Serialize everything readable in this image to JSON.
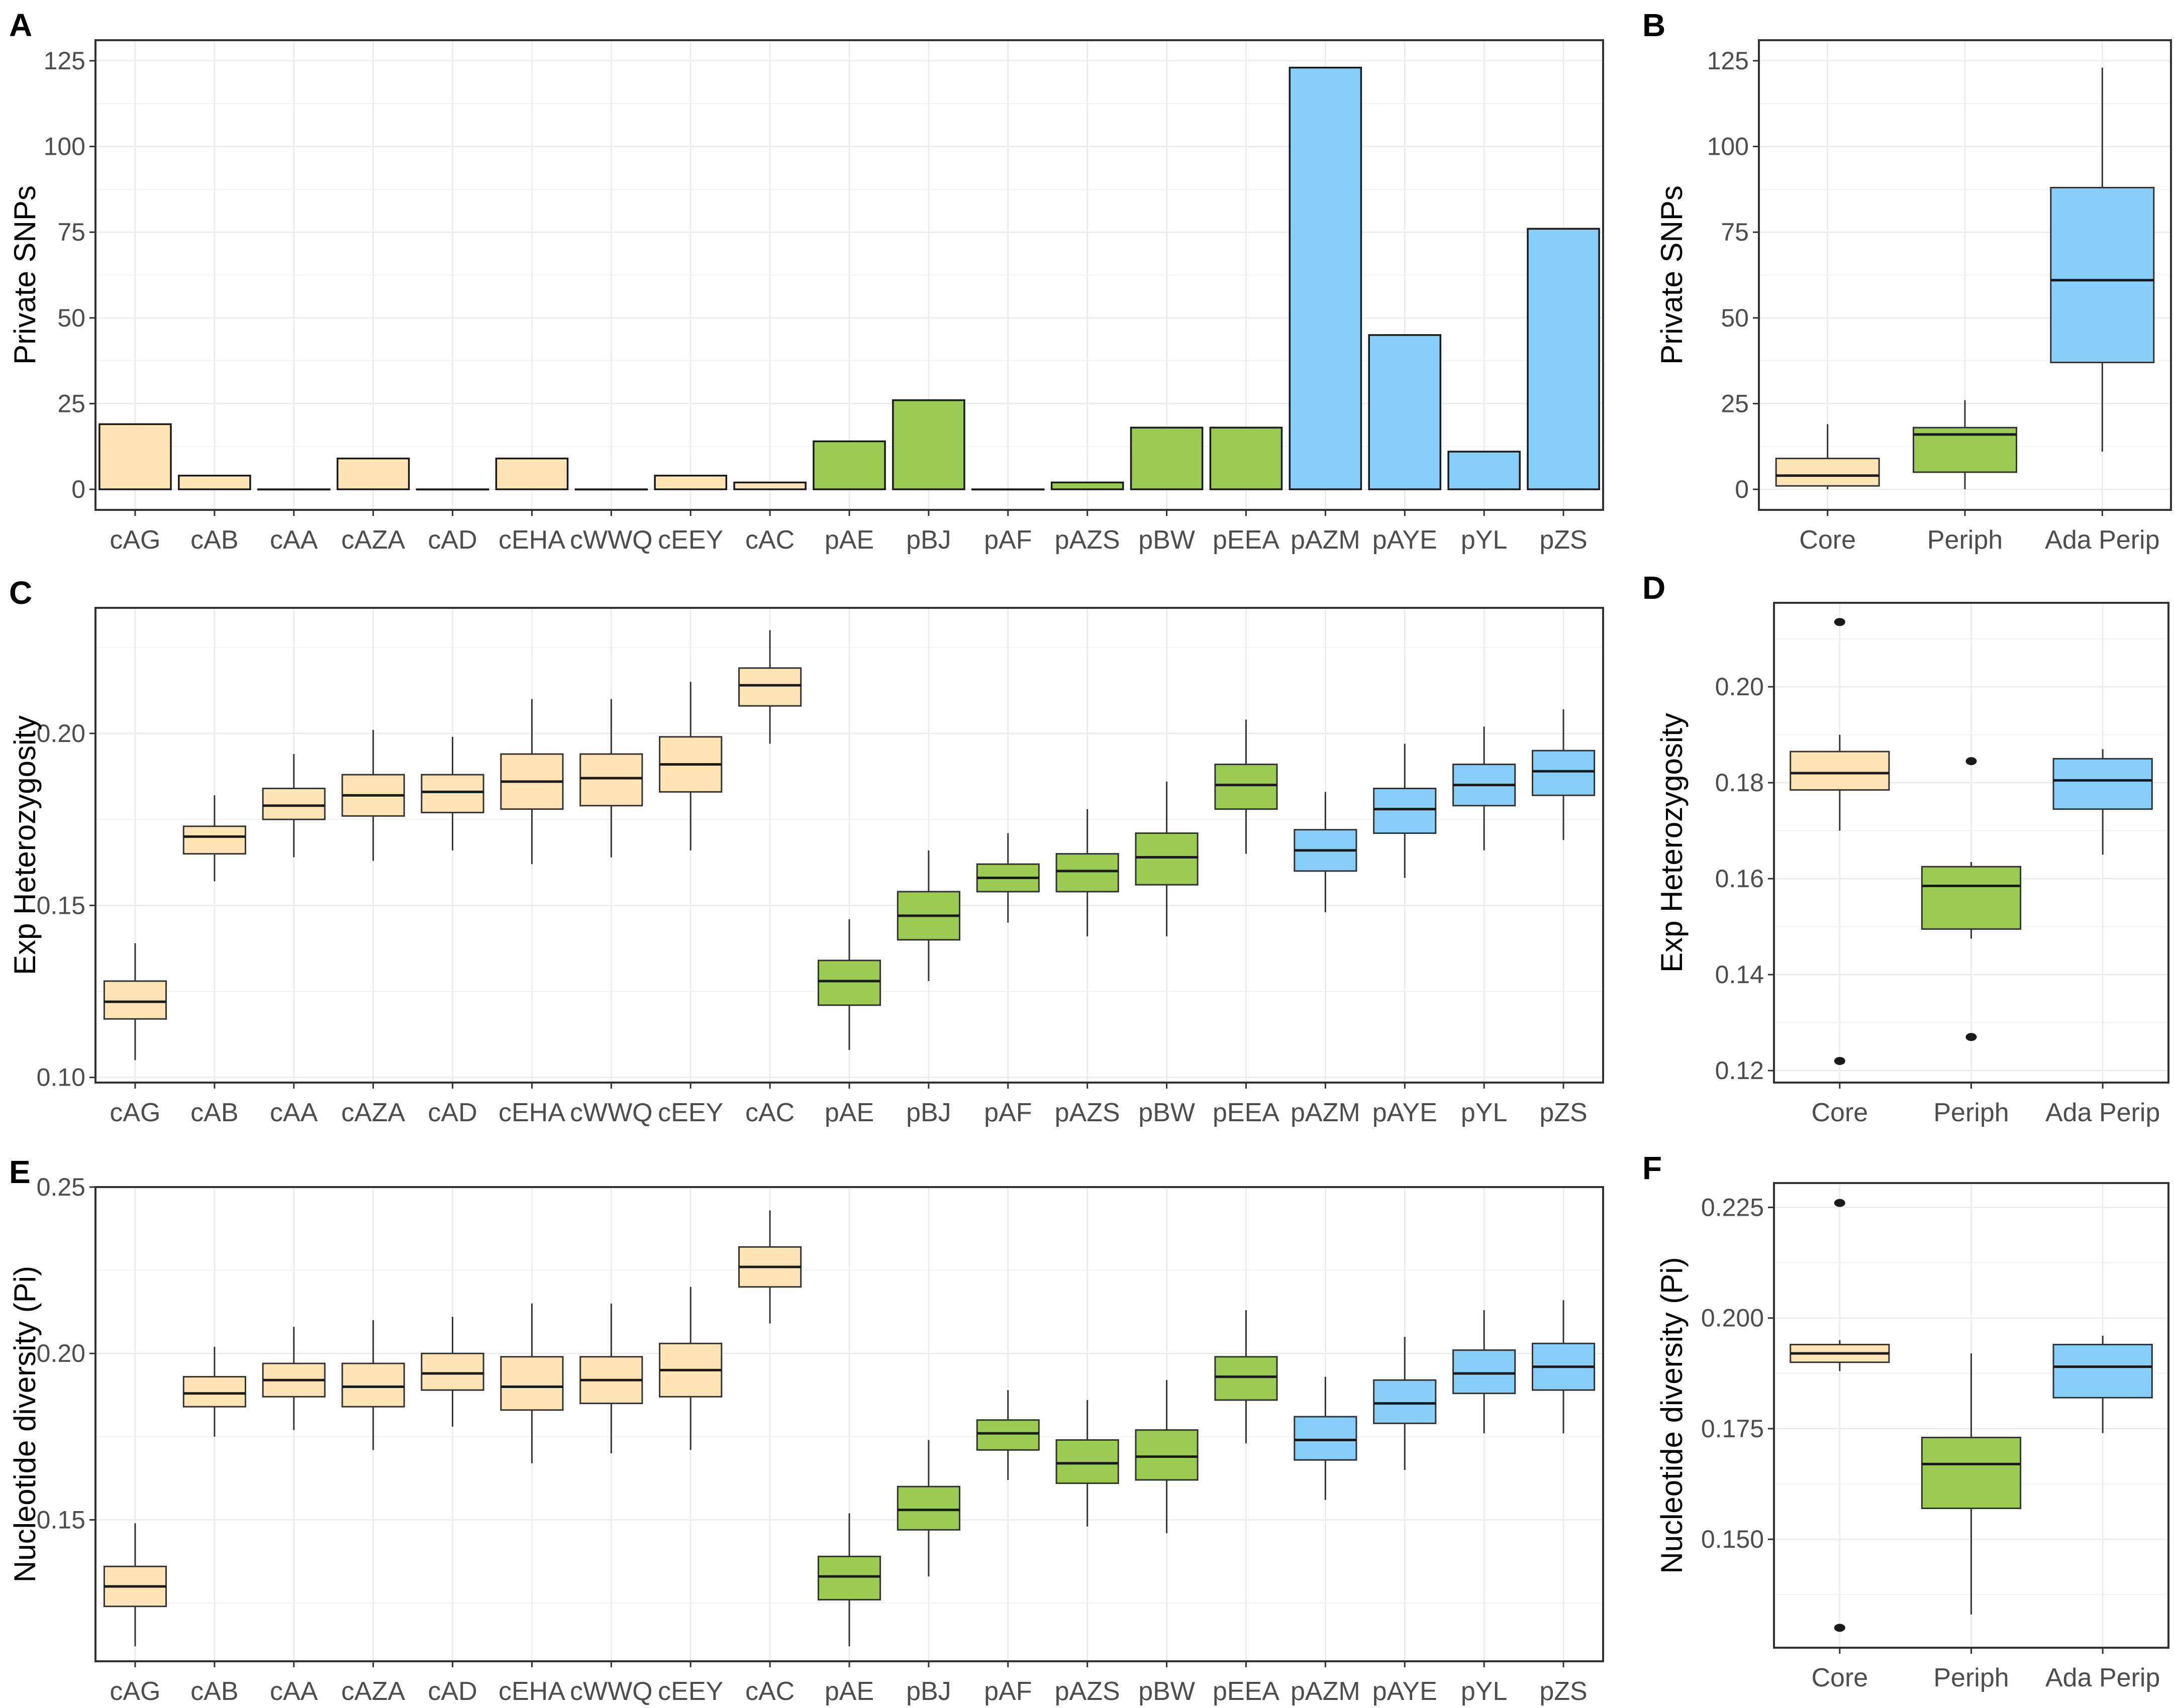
{
  "colors": {
    "core": "#FFE4B5",
    "periph": "#9BCB53",
    "ada": "#87CEFA"
  },
  "chart_data": [
    {
      "panel": "A",
      "type": "bar",
      "ylabel": "Private SNPs",
      "ylim": [
        -6,
        131
      ],
      "yticks": [
        0,
        25,
        50,
        75,
        100,
        125
      ],
      "categories": [
        "cAG",
        "cAB",
        "cAA",
        "cAZA",
        "cAD",
        "cEHA",
        "cWWQ",
        "cEEY",
        "cAC",
        "pAE",
        "pBJ",
        "pAF",
        "pAZS",
        "pBW",
        "pEEA",
        "pAZM",
        "pAYE",
        "pYL",
        "pZS"
      ],
      "groups": [
        "core",
        "core",
        "core",
        "core",
        "core",
        "core",
        "core",
        "core",
        "core",
        "periph",
        "periph",
        "periph",
        "periph",
        "periph",
        "periph",
        "ada",
        "ada",
        "ada",
        "ada"
      ],
      "values": [
        19,
        4,
        0,
        9,
        0,
        9,
        0,
        4,
        2,
        14,
        26,
        0,
        2,
        18,
        18,
        123,
        45,
        11,
        76
      ]
    },
    {
      "panel": "B",
      "type": "box",
      "ylabel": "Private SNPs",
      "ylim": [
        -6,
        131
      ],
      "yticks": [
        0,
        25,
        50,
        75,
        100,
        125
      ],
      "categories": [
        "Core",
        "Periph",
        "Ada Perip"
      ],
      "groups": [
        "core",
        "periph",
        "ada"
      ],
      "boxes": [
        {
          "low": 0,
          "q1": 1,
          "median": 4,
          "q3": 9,
          "high": 19,
          "outliers": []
        },
        {
          "low": 0,
          "q1": 5,
          "median": 16,
          "q3": 18,
          "high": 26,
          "outliers": []
        },
        {
          "low": 11,
          "q1": 37,
          "median": 61,
          "q3": 88,
          "high": 123,
          "outliers": []
        }
      ]
    },
    {
      "panel": "C",
      "type": "box",
      "ylabel": "Exp Heterozygosity",
      "ylim": [
        0.0985,
        0.2365
      ],
      "yticks": [
        0.1,
        0.15,
        0.2
      ],
      "ytick_labels": [
        "0.10",
        "0.15",
        "0.20"
      ],
      "categories": [
        "cAG",
        "cAB",
        "cAA",
        "cAZA",
        "cAD",
        "cEHA",
        "cWWQ",
        "cEEY",
        "cAC",
        "pAE",
        "pBJ",
        "pAF",
        "pAZS",
        "pBW",
        "pEEA",
        "pAZM",
        "pAYE",
        "pYL",
        "pZS"
      ],
      "groups": [
        "core",
        "core",
        "core",
        "core",
        "core",
        "core",
        "core",
        "core",
        "core",
        "periph",
        "periph",
        "periph",
        "periph",
        "periph",
        "periph",
        "ada",
        "ada",
        "ada",
        "ada"
      ],
      "boxes": [
        {
          "low": 0.105,
          "q1": 0.117,
          "median": 0.122,
          "q3": 0.128,
          "high": 0.139,
          "outliers": []
        },
        {
          "low": 0.157,
          "q1": 0.165,
          "median": 0.17,
          "q3": 0.173,
          "high": 0.182,
          "outliers": []
        },
        {
          "low": 0.164,
          "q1": 0.175,
          "median": 0.179,
          "q3": 0.184,
          "high": 0.194,
          "outliers": []
        },
        {
          "low": 0.163,
          "q1": 0.176,
          "median": 0.182,
          "q3": 0.188,
          "high": 0.201,
          "outliers": []
        },
        {
          "low": 0.166,
          "q1": 0.177,
          "median": 0.183,
          "q3": 0.188,
          "high": 0.199,
          "outliers": []
        },
        {
          "low": 0.162,
          "q1": 0.178,
          "median": 0.186,
          "q3": 0.194,
          "high": 0.21,
          "outliers": []
        },
        {
          "low": 0.164,
          "q1": 0.179,
          "median": 0.187,
          "q3": 0.194,
          "high": 0.21,
          "outliers": []
        },
        {
          "low": 0.166,
          "q1": 0.183,
          "median": 0.191,
          "q3": 0.199,
          "high": 0.215,
          "outliers": []
        },
        {
          "low": 0.197,
          "q1": 0.208,
          "median": 0.214,
          "q3": 0.219,
          "high": 0.23,
          "outliers": []
        },
        {
          "low": 0.108,
          "q1": 0.121,
          "median": 0.128,
          "q3": 0.134,
          "high": 0.146,
          "outliers": []
        },
        {
          "low": 0.128,
          "q1": 0.14,
          "median": 0.147,
          "q3": 0.154,
          "high": 0.166,
          "outliers": []
        },
        {
          "low": 0.145,
          "q1": 0.154,
          "median": 0.158,
          "q3": 0.162,
          "high": 0.171,
          "outliers": []
        },
        {
          "low": 0.141,
          "q1": 0.154,
          "median": 0.16,
          "q3": 0.165,
          "high": 0.178,
          "outliers": []
        },
        {
          "low": 0.141,
          "q1": 0.156,
          "median": 0.164,
          "q3": 0.171,
          "high": 0.186,
          "outliers": []
        },
        {
          "low": 0.165,
          "q1": 0.178,
          "median": 0.185,
          "q3": 0.191,
          "high": 0.204,
          "outliers": []
        },
        {
          "low": 0.148,
          "q1": 0.16,
          "median": 0.166,
          "q3": 0.172,
          "high": 0.183,
          "outliers": []
        },
        {
          "low": 0.158,
          "q1": 0.171,
          "median": 0.178,
          "q3": 0.184,
          "high": 0.197,
          "outliers": []
        },
        {
          "low": 0.166,
          "q1": 0.179,
          "median": 0.185,
          "q3": 0.191,
          "high": 0.202,
          "outliers": []
        },
        {
          "low": 0.169,
          "q1": 0.182,
          "median": 0.189,
          "q3": 0.195,
          "high": 0.207,
          "outliers": []
        }
      ]
    },
    {
      "panel": "D",
      "type": "box",
      "ylabel": "Exp Heterozygosity",
      "ylim": [
        0.1175,
        0.2175
      ],
      "yticks": [
        0.12,
        0.14,
        0.16,
        0.18,
        0.2
      ],
      "ytick_labels": [
        "0.12",
        "0.14",
        "0.16",
        "0.18",
        "0.20"
      ],
      "categories": [
        "Core",
        "Periph",
        "Ada Perip"
      ],
      "groups": [
        "core",
        "periph",
        "ada"
      ],
      "boxes": [
        {
          "low": 0.17,
          "q1": 0.1785,
          "median": 0.182,
          "q3": 0.1865,
          "high": 0.19,
          "outliers": [
            0.2135,
            0.122
          ]
        },
        {
          "low": 0.1475,
          "q1": 0.1495,
          "median": 0.1585,
          "q3": 0.1625,
          "high": 0.1635,
          "outliers": [
            0.1845,
            0.127
          ]
        },
        {
          "low": 0.165,
          "q1": 0.1745,
          "median": 0.1805,
          "q3": 0.185,
          "high": 0.187,
          "outliers": []
        }
      ]
    },
    {
      "panel": "E",
      "type": "box",
      "ylabel": "Nucleotide diversity (Pi)",
      "ylim": [
        0.1075,
        0.25
      ],
      "yticks": [
        0.15,
        0.2,
        0.25
      ],
      "ytick_labels": [
        "0.15",
        "0.20",
        "0.25"
      ],
      "categories": [
        "cAG",
        "cAB",
        "cAA",
        "cAZA",
        "cAD",
        "cEHA",
        "cWWQ",
        "cEEY",
        "cAC",
        "pAE",
        "pBJ",
        "pAF",
        "pAZS",
        "pBW",
        "pEEA",
        "pAZM",
        "pAYE",
        "pYL",
        "pZS"
      ],
      "groups": [
        "core",
        "core",
        "core",
        "core",
        "core",
        "core",
        "core",
        "core",
        "core",
        "periph",
        "periph",
        "periph",
        "periph",
        "periph",
        "periph",
        "ada",
        "ada",
        "ada",
        "ada"
      ],
      "boxes": [
        {
          "low": 0.112,
          "q1": 0.124,
          "median": 0.13,
          "q3": 0.136,
          "high": 0.149,
          "outliers": []
        },
        {
          "low": 0.175,
          "q1": 0.184,
          "median": 0.188,
          "q3": 0.193,
          "high": 0.202,
          "outliers": []
        },
        {
          "low": 0.177,
          "q1": 0.187,
          "median": 0.192,
          "q3": 0.197,
          "high": 0.208,
          "outliers": []
        },
        {
          "low": 0.171,
          "q1": 0.184,
          "median": 0.19,
          "q3": 0.197,
          "high": 0.21,
          "outliers": []
        },
        {
          "low": 0.178,
          "q1": 0.189,
          "median": 0.194,
          "q3": 0.2,
          "high": 0.211,
          "outliers": []
        },
        {
          "low": 0.167,
          "q1": 0.183,
          "median": 0.19,
          "q3": 0.199,
          "high": 0.215,
          "outliers": []
        },
        {
          "low": 0.17,
          "q1": 0.185,
          "median": 0.192,
          "q3": 0.199,
          "high": 0.215,
          "outliers": []
        },
        {
          "low": 0.171,
          "q1": 0.187,
          "median": 0.195,
          "q3": 0.203,
          "high": 0.22,
          "outliers": []
        },
        {
          "low": 0.209,
          "q1": 0.22,
          "median": 0.226,
          "q3": 0.232,
          "high": 0.243,
          "outliers": []
        },
        {
          "low": 0.112,
          "q1": 0.126,
          "median": 0.133,
          "q3": 0.139,
          "high": 0.152,
          "outliers": []
        },
        {
          "low": 0.133,
          "q1": 0.147,
          "median": 0.153,
          "q3": 0.16,
          "high": 0.174,
          "outliers": []
        },
        {
          "low": 0.162,
          "q1": 0.171,
          "median": 0.176,
          "q3": 0.18,
          "high": 0.189,
          "outliers": []
        },
        {
          "low": 0.148,
          "q1": 0.161,
          "median": 0.167,
          "q3": 0.174,
          "high": 0.186,
          "outliers": []
        },
        {
          "low": 0.146,
          "q1": 0.162,
          "median": 0.169,
          "q3": 0.177,
          "high": 0.192,
          "outliers": []
        },
        {
          "low": 0.173,
          "q1": 0.186,
          "median": 0.193,
          "q3": 0.199,
          "high": 0.213,
          "outliers": []
        },
        {
          "low": 0.156,
          "q1": 0.168,
          "median": 0.174,
          "q3": 0.181,
          "high": 0.193,
          "outliers": []
        },
        {
          "low": 0.165,
          "q1": 0.179,
          "median": 0.185,
          "q3": 0.192,
          "high": 0.205,
          "outliers": []
        },
        {
          "low": 0.176,
          "q1": 0.188,
          "median": 0.194,
          "q3": 0.201,
          "high": 0.213,
          "outliers": []
        },
        {
          "low": 0.176,
          "q1": 0.189,
          "median": 0.196,
          "q3": 0.203,
          "high": 0.216,
          "outliers": []
        }
      ]
    },
    {
      "panel": "F",
      "type": "box",
      "ylabel": "Nucleotide diversity (Pi)",
      "ylim": [
        0.1255,
        0.2305
      ],
      "yticks": [
        0.15,
        0.175,
        0.2,
        0.225
      ],
      "ytick_labels": [
        "0.150",
        "0.175",
        "0.200",
        "0.225"
      ],
      "categories": [
        "Core",
        "Periph",
        "Ada Perip"
      ],
      "groups": [
        "core",
        "periph",
        "ada"
      ],
      "boxes": [
        {
          "low": 0.188,
          "q1": 0.19,
          "median": 0.192,
          "q3": 0.194,
          "high": 0.195,
          "outliers": [
            0.226,
            0.13
          ]
        },
        {
          "low": 0.133,
          "q1": 0.157,
          "median": 0.167,
          "q3": 0.173,
          "high": 0.192,
          "outliers": []
        },
        {
          "low": 0.174,
          "q1": 0.182,
          "median": 0.189,
          "q3": 0.194,
          "high": 0.196,
          "outliers": []
        }
      ]
    }
  ]
}
